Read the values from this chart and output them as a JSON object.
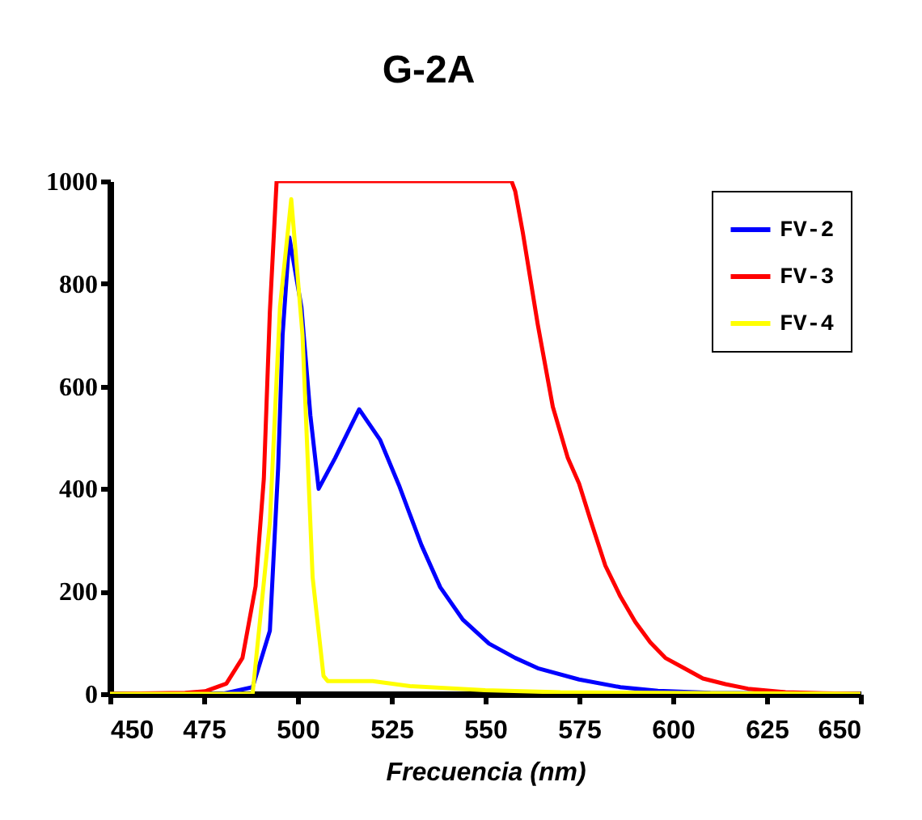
{
  "chart_data": {
    "type": "line",
    "title": "G-2A",
    "xlabel": "Frecuencia (nm)",
    "xlim": [
      450,
      650
    ],
    "xticks": [
      450,
      475,
      500,
      525,
      550,
      575,
      600,
      625,
      650
    ],
    "ylim": [
      0,
      1000
    ],
    "yticks": [
      0,
      200,
      400,
      600,
      800,
      1000
    ],
    "grid": false,
    "legend": "top right",
    "marker": "none",
    "line_style": "solid",
    "series": [
      {
        "name": "FV-2",
        "color": "#0000ff",
        "x": [
          450,
          480,
          488,
          492.6,
          494.8,
          496,
          497.8,
          501,
          503.4,
          505.6,
          510,
          516.4,
          522,
          527,
          533,
          538,
          544,
          551,
          558,
          564,
          575,
          586,
          596,
          610,
          650
        ],
        "values": [
          0,
          0,
          13,
          123,
          440,
          700,
          890,
          755,
          543,
          400,
          460,
          555,
          495,
          407,
          290,
          208,
          145,
          98,
          70,
          50,
          28,
          13,
          6,
          2,
          0
        ]
      },
      {
        "name": "FV-3",
        "color": "#ff0000",
        "x": [
          450,
          470,
          475.4,
          481,
          485.3,
          488.8,
          491,
          492.6,
          494.4,
          557,
          558,
          560,
          564,
          568,
          572,
          575,
          578,
          582,
          586,
          590,
          594,
          598,
          603,
          608,
          614,
          620,
          630,
          640,
          650
        ],
        "values": [
          0,
          2,
          5,
          20,
          70,
          210,
          420,
          745,
          1000,
          1000,
          980,
          900,
          720,
          560,
          460,
          410,
          340,
          250,
          190,
          140,
          100,
          70,
          50,
          30,
          19,
          10,
          3,
          1,
          0
        ]
      },
      {
        "name": "FV-4",
        "color": "#ffff00",
        "x": [
          450,
          488,
          492.6,
          495.3,
          498.3,
          501.3,
          504,
          506.9,
          508,
          520,
          530,
          550,
          570,
          650
        ],
        "values": [
          0,
          0,
          334,
          755,
          965,
          700,
          227,
          35,
          25,
          25,
          15,
          7,
          3,
          0
        ]
      }
    ]
  }
}
